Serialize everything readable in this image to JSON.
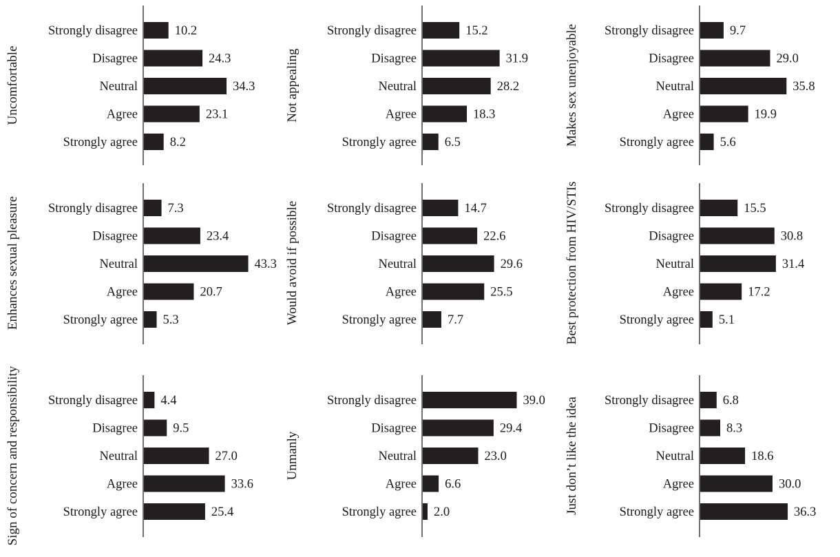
{
  "chart_data": [
    {
      "type": "bar",
      "ylabel": "Uncomfortable",
      "categories": [
        "Strongly disagree",
        "Disagree",
        "Neutral",
        "Agree",
        "Strongly agree"
      ],
      "values": [
        10.2,
        24.3,
        34.3,
        23.1,
        8.2
      ]
    },
    {
      "type": "bar",
      "ylabel": "Not appealing",
      "categories": [
        "Strongly disagree",
        "Disagree",
        "Neutral",
        "Agree",
        "Strongly agree"
      ],
      "values": [
        15.2,
        31.9,
        28.2,
        18.3,
        6.5
      ]
    },
    {
      "type": "bar",
      "ylabel": "Makes sex unenjoyable",
      "categories": [
        "Strongly disagree",
        "Disagree",
        "Neutral",
        "Agree",
        "Strongly agree"
      ],
      "values": [
        9.7,
        29.0,
        35.8,
        19.9,
        5.6
      ]
    },
    {
      "type": "bar",
      "ylabel": "Enhances sexual pleasure",
      "categories": [
        "Strongly disagree",
        "Disagree",
        "Neutral",
        "Agree",
        "Strongly agree"
      ],
      "values": [
        7.3,
        23.4,
        43.3,
        20.7,
        5.3
      ]
    },
    {
      "type": "bar",
      "ylabel": "Would avoid if possible",
      "categories": [
        "Strongly disagree",
        "Disagree",
        "Neutral",
        "Agree",
        "Strongly agree"
      ],
      "values": [
        14.7,
        22.6,
        29.6,
        25.5,
        7.7
      ]
    },
    {
      "type": "bar",
      "ylabel": "Best protection from HIV/STIs",
      "categories": [
        "Strongly disagree",
        "Disagree",
        "Neutral",
        "Agree",
        "Strongly agree"
      ],
      "values": [
        15.5,
        30.8,
        31.4,
        17.2,
        5.1
      ]
    },
    {
      "type": "bar",
      "ylabel": "Sign of concern and responsibility",
      "categories": [
        "Strongly disagree",
        "Disagree",
        "Neutral",
        "Agree",
        "Strongly agree"
      ],
      "values": [
        4.4,
        9.5,
        27.0,
        33.6,
        25.4
      ]
    },
    {
      "type": "bar",
      "ylabel": "Unmanly",
      "categories": [
        "Strongly disagree",
        "Disagree",
        "Neutral",
        "Agree",
        "Strongly agree"
      ],
      "values": [
        39.0,
        29.4,
        23.0,
        6.6,
        2.0
      ]
    },
    {
      "type": "bar",
      "ylabel": "Just don’t like the idea",
      "categories": [
        "Strongly disagree",
        "Disagree",
        "Neutral",
        "Agree",
        "Strongly agree"
      ],
      "values": [
        6.8,
        8.3,
        18.6,
        30.0,
        36.3
      ]
    }
  ],
  "style": {
    "bar_color": "#231f20",
    "axis_color": "#231f20",
    "text_color": "#1a1a1a",
    "orientation": "horizontal"
  }
}
